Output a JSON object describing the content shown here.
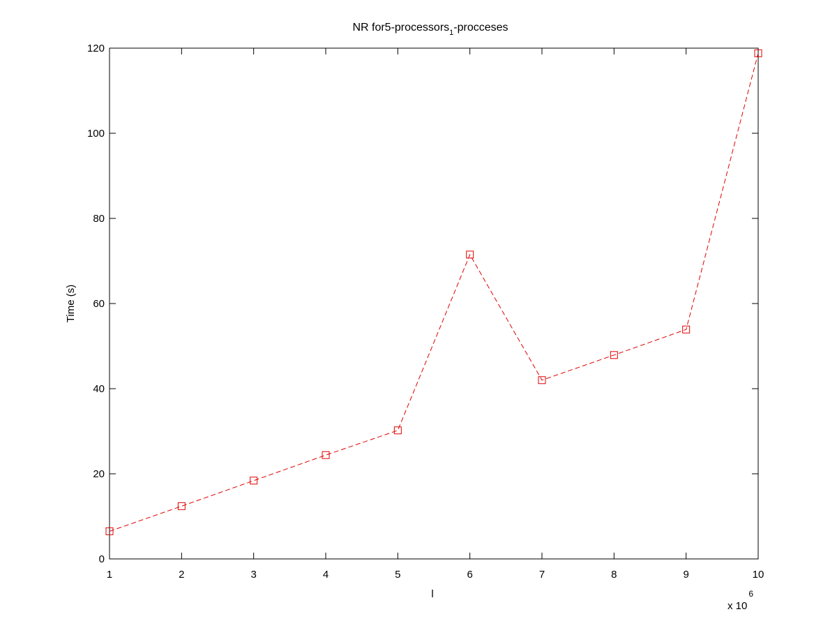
{
  "chart_data": {
    "type": "line",
    "title": {
      "main": "NR for5-processors",
      "subscript": "1",
      "tail": "-procceses"
    },
    "xlabel": "l",
    "ylabel": "Time (s)",
    "x_multiplier": {
      "base": "x 10",
      "exponent": "6"
    },
    "xlim": [
      1,
      10
    ],
    "ylim": [
      0,
      120
    ],
    "xticks": [
      1,
      2,
      3,
      4,
      5,
      6,
      7,
      8,
      9,
      10
    ],
    "yticks": [
      0,
      20,
      40,
      60,
      80,
      100,
      120
    ],
    "grid": false,
    "series": [
      {
        "color": "#e00000",
        "line_style": "dashed",
        "marker": "square",
        "x": [
          1,
          2,
          3,
          4,
          5,
          6,
          7,
          8,
          9,
          10
        ],
        "y": [
          6.5,
          12.4,
          18.4,
          24.4,
          30.2,
          71.5,
          42.0,
          47.9,
          53.9,
          118.8
        ]
      }
    ]
  }
}
